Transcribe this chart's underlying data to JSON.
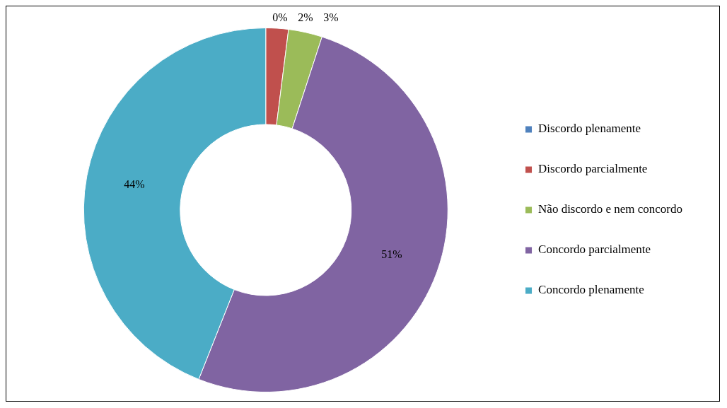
{
  "chart_data": {
    "type": "donut",
    "categories": [
      "Discordo plenamente",
      "Discordo parcialmente",
      "Não discordo e nem concordo",
      "Concordo parcialmente",
      "Concordo plenamente"
    ],
    "values": [
      0,
      2,
      3,
      51,
      44
    ],
    "colors": [
      "#4f81bd",
      "#c0504d",
      "#9bbb59",
      "#8064a2",
      "#4bacc6"
    ],
    "value_labels": [
      "0%",
      "2%",
      "3%",
      "51%",
      "44%"
    ],
    "legend": "right"
  }
}
